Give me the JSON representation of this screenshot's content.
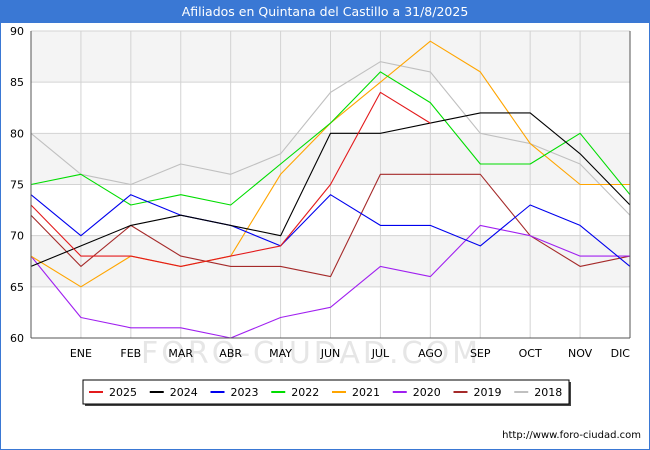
{
  "header": {
    "title": "Afiliados en Quintana del Castillo a 31/8/2025"
  },
  "footer": {
    "url": "http://www.foro-ciudad.com"
  },
  "watermark": "FORO-CIUDAD.COM",
  "chart_data": {
    "type": "line",
    "title": "Afiliados en Quintana del Castillo a 31/8/2025",
    "xlabel": "",
    "ylabel": "",
    "x_slots": [
      "",
      "ENE",
      "FEB",
      "MAR",
      "ABR",
      "MAY",
      "JUN",
      "JUL",
      "AGO",
      "SEP",
      "OCT",
      "NOV",
      "DIC"
    ],
    "ylim": [
      60,
      90
    ],
    "yticks": [
      60,
      65,
      70,
      75,
      80,
      85,
      90
    ],
    "grid": true,
    "legend_position": "bottom",
    "series": [
      {
        "name": "2025",
        "color": "#e31a1c",
        "values": [
          73,
          68,
          68,
          67,
          68,
          69,
          75,
          84,
          81,
          null,
          null,
          null,
          null
        ]
      },
      {
        "name": "2024",
        "color": "#000000",
        "values": [
          67,
          69,
          71,
          72,
          71,
          70,
          80,
          80,
          81,
          82,
          82,
          78,
          73
        ]
      },
      {
        "name": "2023",
        "color": "#0000ee",
        "values": [
          74,
          70,
          74,
          72,
          71,
          69,
          74,
          71,
          71,
          69,
          73,
          71,
          67
        ]
      },
      {
        "name": "2022",
        "color": "#00dd00",
        "values": [
          75,
          76,
          73,
          74,
          73,
          77,
          81,
          86,
          83,
          77,
          77,
          80,
          74
        ]
      },
      {
        "name": "2021",
        "color": "#ffa500",
        "values": [
          68,
          65,
          68,
          67,
          68,
          76,
          81,
          85,
          89,
          86,
          79,
          75,
          75
        ]
      },
      {
        "name": "2020",
        "color": "#a020f0",
        "values": [
          68,
          62,
          61,
          61,
          60,
          62,
          63,
          67,
          66,
          71,
          70,
          68,
          68
        ]
      },
      {
        "name": "2019",
        "color": "#a52a2a",
        "values": [
          72,
          67,
          71,
          68,
          67,
          67,
          66,
          76,
          76,
          76,
          70,
          67,
          68
        ]
      },
      {
        "name": "2018",
        "color": "#c0c0c0",
        "values": [
          80,
          76,
          75,
          77,
          76,
          78,
          84,
          87,
          86,
          80,
          79,
          77,
          72
        ]
      }
    ]
  }
}
